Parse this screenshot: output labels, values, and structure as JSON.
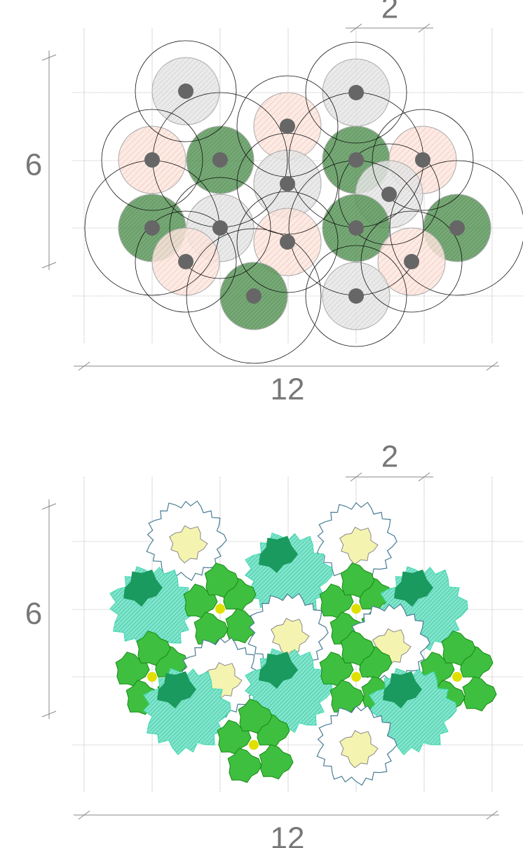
{
  "top": {
    "spacing_label": "2",
    "height_label": "6",
    "width_label": "12"
  },
  "bottom": {
    "spacing_label": "2",
    "height_label": "6",
    "width_label": "12"
  }
}
